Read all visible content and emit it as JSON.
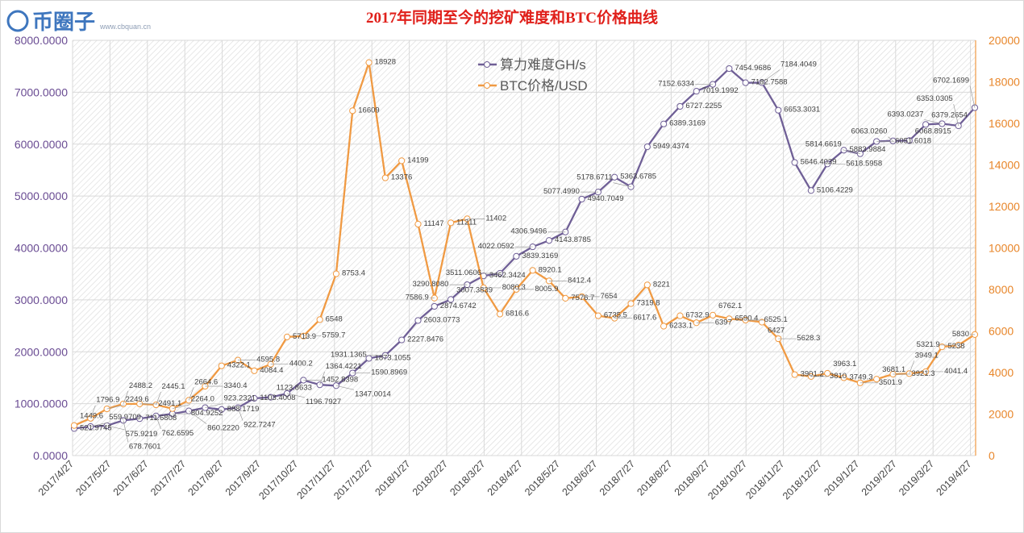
{
  "chart_data": {
    "type": "line",
    "title": "2017年同期至今的挖矿难度和BTC价格曲线",
    "x_tick_labels": [
      "2017/4/27",
      "2017/5/27",
      "2017/6/27",
      "2017/7/27",
      "2017/8/27",
      "2017/9/27",
      "2017/10/27",
      "2017/11/27",
      "2017/12/27",
      "2018/1/27",
      "2018/2/27",
      "2018/3/27",
      "2018/4/27",
      "2018/5/27",
      "2018/6/27",
      "2018/7/27",
      "2018/8/27",
      "2018/9/27",
      "2018/10/27",
      "2018/11/27",
      "2018/12/27",
      "2019/1/27",
      "2019/2/27",
      "2019/3/27",
      "2019/4/27"
    ],
    "y_left": {
      "min": 0,
      "max": 8000,
      "step": 1000,
      "decimals": 4,
      "tick_labels": [
        "0.0000",
        "1000.0000",
        "2000.0000",
        "3000.0000",
        "4000.0000",
        "5000.0000",
        "6000.0000",
        "7000.0000",
        "8000.0000"
      ]
    },
    "y_right": {
      "min": 0,
      "max": 20000,
      "step": 2000,
      "tick_labels": [
        "0",
        "2000",
        "4000",
        "6000",
        "8000",
        "10000",
        "12000",
        "14000",
        "16000",
        "18000",
        "20000"
      ]
    },
    "grid": true,
    "legend_position": "top-center",
    "series": [
      {
        "name": "算力难度GH/s",
        "axis": "left",
        "color": "#6f5f96",
        "values": [
          521.9745,
          559.9709,
          575.9219,
          678.7601,
          711.6808,
          762.6595,
          804.9252,
          860.222,
          923.2321,
          888.1719,
          922.7247,
          1103.4008,
          1123.8633,
          1196.7927,
          1452.8398,
          1364.4221,
          1347.0014,
          1590.8969,
          1873.1055,
          1931.1365,
          2227.8476,
          2603.0773,
          2874.6742,
          3007.3839,
          3290.808,
          3462.3424,
          3511.0606,
          3839.3169,
          4022.0592,
          4143.8785,
          4306.9496,
          4940.7049,
          5077.499,
          5363.6785,
          5178.6711,
          5949.4374,
          6389.3169,
          6727.2255,
          7019.1992,
          7152.6334,
          7454.9686,
          7182.7588,
          7184.4049,
          6653.3031,
          5646.4039,
          5106.4229,
          5618.5958,
          5883.9884,
          5814.6619,
          6051.6018,
          6063.026,
          6068.8915,
          6379.2654,
          6393.0237,
          6353.0305,
          6702.1699
        ],
        "labels": [
          "521.9745",
          "559.9709",
          "575.9219",
          "678.7601",
          "711.6808",
          "762.6595",
          "804.9252",
          "860.2220",
          "923.2321",
          "888.1719",
          "922.7247",
          "1103.4008",
          "1123.8633",
          "1196.7927",
          "1452.8398",
          "1364.4221",
          "1347.0014",
          "1590.8969",
          "1873.1055",
          "1931.1365",
          "2227.8476",
          "2603.0773",
          "2874.6742",
          "3007.3839",
          "3290.8080",
          "3462.3424",
          "3511.0606",
          "3839.3169",
          "4022.0592",
          "4143.8785",
          "4306.9496",
          "4940.7049",
          "5077.4990",
          "5363.6785",
          "5178.6711",
          "5949.4374",
          "6389.3169",
          "6727.2255",
          "7019.1992",
          "7152.6334",
          "7454.9686",
          "7182.7588",
          "7184.4049",
          "6653.3031",
          "5646.4039",
          "5106.4229",
          "5618.5958",
          "5883.9884",
          "5814.6619",
          "6051.6018",
          "6063.0260",
          "6068.8915",
          "6379.2654",
          "6393.0237",
          "6353.0305",
          "6702.1699"
        ]
      },
      {
        "name": "BTC价格/USD",
        "axis": "right",
        "color": "#f09a43",
        "values": [
          1449.6,
          1796.9,
          2249.6,
          2488.2,
          2491.1,
          2445.1,
          2264.0,
          2664.6,
          3340.4,
          4322.1,
          4595.8,
          4084.4,
          4400.2,
          5713.9,
          5759.7,
          6548,
          8753.4,
          16609,
          18928,
          13376,
          14199,
          11147,
          7586.9,
          11211,
          11402,
          8080.3,
          6816.6,
          8005.9,
          8920.1,
          8412.4,
          7576.7,
          7654,
          6735.5,
          6617.6,
          7319.8,
          8221,
          6233.1,
          6732.9,
          6397,
          6762.1,
          6590.4,
          6525.1,
          6427,
          5628.3,
          3901.2,
          3810,
          3963.1,
          3749.3,
          3501.9,
          3681.1,
          3921.3,
          3949.1,
          4041.4,
          5238,
          5321.9,
          5830
        ],
        "labels": [
          "1449.6",
          "1796.9",
          "2249.6",
          "2488.2",
          "2491.1",
          "2445.1",
          "2264.0",
          "2664.6",
          "3340.4",
          "4322.1",
          "4595.8",
          "4084.4",
          "4400.2",
          "5713.9",
          "5759.7",
          "6548",
          "8753.4",
          "16609",
          "18928",
          "13376",
          "14199",
          "11147",
          "7586.9",
          "11211",
          "11402",
          "8080.3",
          "6816.6",
          "8005.9",
          "8920.1",
          "8412.4",
          "7576.7",
          "7654",
          "6735.5",
          "6617.6",
          "7319.8",
          "8221",
          "6233.1",
          "6732.9",
          "6397",
          "6762.1",
          "6590.4",
          "6525.1",
          "6427",
          "5628.3",
          "3901.2",
          "3810",
          "3963.1",
          "3749.3",
          "3501.9",
          "3681.1",
          "3921.3",
          "3949.1",
          "4041.4",
          "5238",
          "5321.9",
          "5830"
        ]
      }
    ]
  },
  "colors": {
    "title": "#e0201b",
    "left_axis": "#6a4c93",
    "right_axis": "#e8862a",
    "grid": "#d9d9d9"
  },
  "watermark": {
    "text": "币圈子",
    "subtext": "www.cbquan.cn"
  }
}
